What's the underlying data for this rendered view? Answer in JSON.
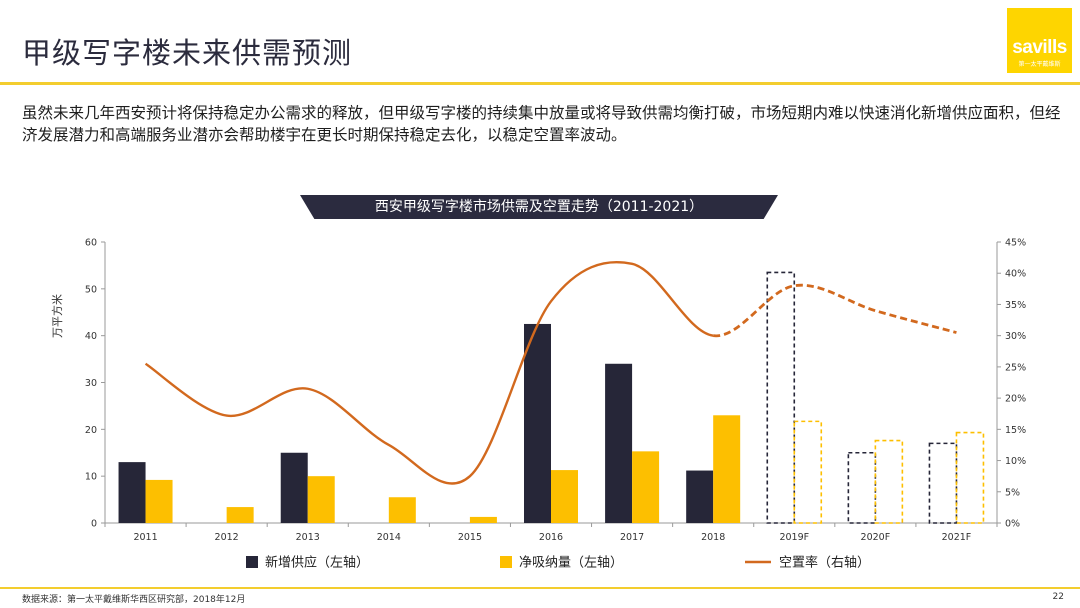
{
  "title": "甲级写字楼未来供需预测",
  "logo": {
    "word": "savills",
    "subtitle": "第一太平戴维斯"
  },
  "intro": "虽然未来几年西安预计将保持稳定办公需求的释放，但甲级写字楼的持续集中放量或将导致供需均衡打破，市场短期内难以快速消化新增供应面积，但经济发展潜力和高端服务业潜亦会帮助楼宇在更长时期保持稳定去化，以稳定空置率波动。",
  "colors": {
    "accent": "#f3cd2e",
    "supply": "#262638",
    "absorption": "#fdbf00",
    "vacancy": "#d2691e"
  },
  "chart_data": {
    "type": "bar",
    "title": "西安甲级写字楼市场供需及空置走势（2011-2021）",
    "ylabel": "万平方米",
    "ylim": [
      0,
      60
    ],
    "yticks": [
      "0",
      "10",
      "20",
      "30",
      "40",
      "50",
      "60"
    ],
    "y2lim": [
      0,
      45
    ],
    "y2ticks": [
      "0%",
      "5%",
      "10%",
      "15%",
      "20%",
      "25%",
      "30%",
      "35%",
      "40%",
      "45%"
    ],
    "categories": [
      "2011",
      "2012",
      "2013",
      "2014",
      "2015",
      "2016",
      "2017",
      "2018",
      "2019F",
      "2020F",
      "2021F"
    ],
    "forecast_categories": [
      "2019F",
      "2020F",
      "2021F"
    ],
    "series": [
      {
        "name": "新增供应（左轴）",
        "type": "bar",
        "axis": "left",
        "values": [
          13,
          0,
          15,
          0,
          0,
          42.5,
          34,
          11.2,
          53.5,
          15,
          17
        ]
      },
      {
        "name": "净吸纳量（左轴）",
        "type": "bar",
        "axis": "left",
        "values": [
          9.2,
          3.4,
          10,
          5.5,
          1.3,
          11.3,
          15.3,
          23,
          21.7,
          17.6,
          19.3
        ]
      },
      {
        "name": "空置率（右轴）",
        "type": "line",
        "axis": "right",
        "values": [
          25.5,
          17.2,
          21.5,
          12.5,
          7.5,
          35.5,
          41.5,
          30,
          38,
          34,
          30.5
        ]
      }
    ],
    "legend": "bottom",
    "grid": false
  },
  "source": "数据来源：第一太平戴维斯华西区研究部，2018年12月",
  "page_number": "22"
}
